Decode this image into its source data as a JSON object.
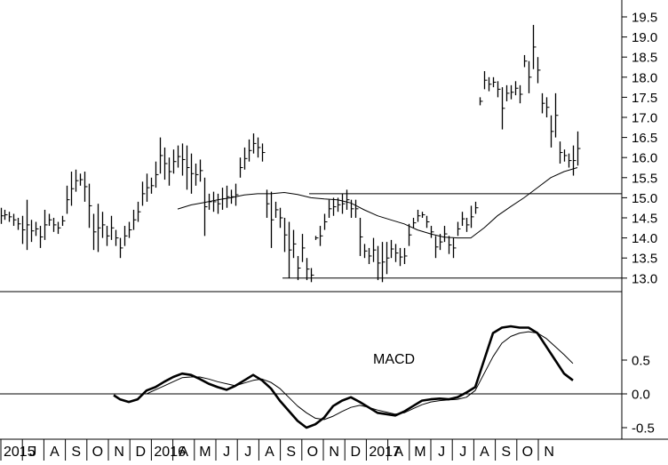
{
  "chart_data": [
    {
      "type": "bar",
      "subtype": "ohlc-price-bars",
      "yaxis": {
        "ylim": [
          12.5,
          19.8
        ],
        "ticks": [
          "19.5",
          "19.0",
          "18.5",
          "18.0",
          "17.5",
          "17.0",
          "16.5",
          "16.0",
          "15.5",
          "15.0",
          "14.5",
          "14.0",
          "13.5",
          "13.0"
        ],
        "position": "right"
      },
      "grid": false,
      "bars": [
        [
          1,
          14.35,
          14.75
        ],
        [
          5,
          14.45,
          14.7
        ],
        [
          10,
          14.4,
          14.65
        ],
        [
          15,
          14.3,
          14.6
        ],
        [
          20,
          14.2,
          14.5
        ],
        [
          25,
          13.85,
          14.55
        ],
        [
          30,
          13.7,
          14.95
        ],
        [
          35,
          13.9,
          14.45
        ],
        [
          40,
          14.05,
          14.4
        ],
        [
          45,
          13.75,
          14.3
        ],
        [
          50,
          13.95,
          14.7
        ],
        [
          55,
          14.3,
          14.6
        ],
        [
          60,
          14.15,
          14.5
        ],
        [
          65,
          14.1,
          14.4
        ],
        [
          70,
          14.3,
          14.55
        ],
        [
          75,
          14.6,
          15.3
        ],
        [
          80,
          14.8,
          15.65
        ],
        [
          85,
          15.15,
          15.7
        ],
        [
          90,
          15.3,
          15.6
        ],
        [
          95,
          14.9,
          15.65
        ],
        [
          100,
          14.25,
          15.35
        ],
        [
          105,
          13.7,
          14.6
        ],
        [
          110,
          13.65,
          14.85
        ],
        [
          115,
          14.0,
          14.65
        ],
        [
          120,
          13.8,
          14.3
        ],
        [
          125,
          13.95,
          14.55
        ],
        [
          130,
          13.8,
          14.2
        ],
        [
          135,
          13.5,
          14.0
        ],
        [
          140,
          13.8,
          14.3
        ],
        [
          145,
          14.0,
          14.4
        ],
        [
          150,
          14.2,
          14.7
        ],
        [
          155,
          14.4,
          14.9
        ],
        [
          160,
          14.8,
          15.4
        ],
        [
          165,
          14.9,
          15.6
        ],
        [
          170,
          15.1,
          15.5
        ],
        [
          175,
          15.25,
          15.9
        ],
        [
          180,
          15.6,
          16.5
        ],
        [
          185,
          15.45,
          16.25
        ],
        [
          190,
          15.3,
          16.0
        ],
        [
          195,
          15.6,
          16.2
        ],
        [
          200,
          15.75,
          16.3
        ],
        [
          205,
          15.55,
          16.35
        ],
        [
          210,
          15.2,
          16.3
        ],
        [
          215,
          15.1,
          16.1
        ],
        [
          220,
          15.3,
          15.85
        ],
        [
          225,
          15.4,
          15.95
        ],
        [
          230,
          14.05,
          15.5
        ],
        [
          235,
          14.7,
          15.1
        ],
        [
          240,
          14.65,
          15.15
        ],
        [
          245,
          14.6,
          15.1
        ],
        [
          250,
          14.7,
          15.25
        ],
        [
          255,
          14.75,
          15.3
        ],
        [
          260,
          14.85,
          15.2
        ],
        [
          265,
          14.8,
          15.35
        ],
        [
          270,
          15.5,
          16.0
        ],
        [
          275,
          15.7,
          16.25
        ],
        [
          280,
          15.9,
          16.45
        ],
        [
          285,
          16.1,
          16.6
        ],
        [
          290,
          16.0,
          16.5
        ],
        [
          295,
          15.9,
          16.35
        ],
        [
          300,
          14.5,
          15.2
        ],
        [
          305,
          13.75,
          15.15
        ],
        [
          310,
          14.5,
          14.9
        ],
        [
          315,
          14.25,
          14.75
        ],
        [
          320,
          13.65,
          14.5
        ],
        [
          325,
          13.0,
          14.4
        ],
        [
          330,
          13.5,
          14.2
        ],
        [
          335,
          12.95,
          13.55
        ],
        [
          340,
          13.4,
          14.1
        ],
        [
          345,
          12.95,
          13.5
        ],
        [
          350,
          12.9,
          13.25
        ],
        [
          355,
          13.95,
          14.05
        ],
        [
          360,
          13.8,
          14.3
        ],
        [
          365,
          14.2,
          14.6
        ],
        [
          370,
          14.5,
          14.95
        ],
        [
          375,
          14.55,
          15.0
        ],
        [
          380,
          14.65,
          15.0
        ],
        [
          385,
          14.6,
          15.1
        ],
        [
          390,
          14.7,
          15.2
        ],
        [
          395,
          14.5,
          14.95
        ],
        [
          400,
          14.5,
          14.95
        ],
        [
          405,
          13.55,
          14.5
        ],
        [
          410,
          13.5,
          13.85
        ],
        [
          415,
          13.35,
          13.75
        ],
        [
          420,
          13.4,
          14.0
        ],
        [
          425,
          12.95,
          13.8
        ],
        [
          430,
          12.9,
          13.9
        ],
        [
          435,
          13.1,
          13.9
        ],
        [
          440,
          13.5,
          13.95
        ],
        [
          445,
          13.4,
          13.85
        ],
        [
          450,
          13.3,
          13.75
        ],
        [
          455,
          13.35,
          13.75
        ],
        [
          460,
          13.8,
          14.35
        ],
        [
          465,
          14.25,
          14.5
        ],
        [
          470,
          14.4,
          14.7
        ],
        [
          475,
          14.5,
          14.65
        ],
        [
          480,
          14.25,
          14.55
        ],
        [
          485,
          14.0,
          14.3
        ],
        [
          490,
          13.5,
          14.05
        ],
        [
          495,
          13.7,
          14.1
        ],
        [
          500,
          13.9,
          14.3
        ],
        [
          505,
          13.6,
          14.05
        ],
        [
          510,
          13.5,
          14.0
        ],
        [
          515,
          14.05,
          14.4
        ],
        [
          520,
          14.3,
          14.65
        ],
        [
          525,
          14.15,
          14.5
        ],
        [
          530,
          14.25,
          14.8
        ],
        [
          535,
          14.6,
          14.9
        ],
        [
          540,
          17.3,
          17.5
        ],
        [
          545,
          17.7,
          18.15
        ],
        [
          550,
          17.65,
          18.0
        ],
        [
          555,
          17.75,
          18.0
        ],
        [
          560,
          17.5,
          17.9
        ],
        [
          565,
          16.7,
          17.75
        ],
        [
          570,
          17.4,
          17.8
        ],
        [
          575,
          17.45,
          17.8
        ],
        [
          580,
          17.55,
          17.9
        ],
        [
          585,
          17.35,
          17.8
        ],
        [
          590,
          18.25,
          18.55
        ],
        [
          595,
          17.6,
          18.4
        ],
        [
          600,
          18.2,
          19.3
        ],
        [
          605,
          17.85,
          18.5
        ],
        [
          610,
          17.1,
          17.6
        ],
        [
          615,
          17.0,
          17.5
        ],
        [
          620,
          16.25,
          17.05
        ],
        [
          625,
          16.5,
          17.6
        ],
        [
          630,
          15.85,
          16.4
        ],
        [
          635,
          15.9,
          16.2
        ],
        [
          640,
          15.75,
          16.1
        ],
        [
          645,
          15.55,
          16.3
        ],
        [
          650,
          15.8,
          16.65
        ]
      ],
      "moving_average": [
        [
          200,
          14.72
        ],
        [
          215,
          14.82
        ],
        [
          230,
          14.88
        ],
        [
          245,
          14.95
        ],
        [
          260,
          15.0
        ],
        [
          275,
          15.07
        ],
        [
          290,
          15.1
        ],
        [
          305,
          15.1
        ],
        [
          320,
          15.13
        ],
        [
          335,
          15.08
        ],
        [
          350,
          15.0
        ],
        [
          365,
          14.97
        ],
        [
          380,
          14.95
        ],
        [
          395,
          14.87
        ],
        [
          410,
          14.7
        ],
        [
          425,
          14.55
        ],
        [
          440,
          14.45
        ],
        [
          455,
          14.35
        ],
        [
          470,
          14.2
        ],
        [
          485,
          14.1
        ],
        [
          500,
          14.02
        ],
        [
          515,
          14.0
        ],
        [
          530,
          14.0
        ],
        [
          545,
          14.25
        ],
        [
          560,
          14.55
        ],
        [
          575,
          14.78
        ],
        [
          590,
          15.0
        ],
        [
          605,
          15.25
        ],
        [
          620,
          15.5
        ],
        [
          635,
          15.65
        ],
        [
          650,
          15.75
        ]
      ],
      "horizontal_lines": [
        [
          318,
          700,
          13.0
        ],
        [
          348,
          700,
          15.1
        ]
      ]
    },
    {
      "type": "line",
      "title": "MACD",
      "yaxis": {
        "ylim": [
          -0.65,
          1.3
        ],
        "ticks": [
          "0.5",
          "0.0",
          "-0.5"
        ],
        "position": "right"
      },
      "zero_line": 0.0,
      "series": [
        {
          "values": [
            [
              128,
              -0.02
            ],
            [
              135,
              -0.08
            ],
            [
              145,
              -0.12
            ],
            [
              155,
              -0.08
            ],
            [
              165,
              0.05
            ],
            [
              175,
              0.1
            ],
            [
              185,
              0.18
            ],
            [
              195,
              0.25
            ],
            [
              205,
              0.3
            ],
            [
              215,
              0.28
            ],
            [
              225,
              0.22
            ],
            [
              235,
              0.15
            ],
            [
              245,
              0.1
            ],
            [
              255,
              0.06
            ],
            [
              265,
              0.12
            ],
            [
              275,
              0.2
            ],
            [
              285,
              0.28
            ],
            [
              295,
              0.2
            ],
            [
              305,
              0.08
            ],
            [
              315,
              -0.1
            ],
            [
              325,
              -0.25
            ],
            [
              335,
              -0.4
            ],
            [
              345,
              -0.5
            ],
            [
              355,
              -0.45
            ],
            [
              365,
              -0.35
            ],
            [
              375,
              -0.18
            ],
            [
              385,
              -0.1
            ],
            [
              395,
              -0.05
            ],
            [
              405,
              -0.12
            ],
            [
              415,
              -0.2
            ],
            [
              425,
              -0.28
            ],
            [
              435,
              -0.3
            ],
            [
              445,
              -0.32
            ],
            [
              455,
              -0.26
            ],
            [
              465,
              -0.18
            ],
            [
              475,
              -0.1
            ],
            [
              485,
              -0.08
            ],
            [
              495,
              -0.07
            ],
            [
              505,
              -0.08
            ],
            [
              515,
              -0.05
            ],
            [
              525,
              0.02
            ],
            [
              535,
              0.1
            ],
            [
              545,
              0.5
            ],
            [
              555,
              0.9
            ],
            [
              565,
              0.98
            ],
            [
              575,
              1.0
            ],
            [
              585,
              0.98
            ],
            [
              595,
              0.98
            ],
            [
              605,
              0.9
            ],
            [
              615,
              0.7
            ],
            [
              625,
              0.5
            ],
            [
              635,
              0.3
            ],
            [
              645,
              0.2
            ]
          ]
        },
        {
          "values": [
            [
              165,
              0.0
            ],
            [
              175,
              0.06
            ],
            [
              185,
              0.12
            ],
            [
              195,
              0.18
            ],
            [
              205,
              0.24
            ],
            [
              215,
              0.25
            ],
            [
              225,
              0.25
            ],
            [
              235,
              0.22
            ],
            [
              245,
              0.18
            ],
            [
              255,
              0.15
            ],
            [
              265,
              0.12
            ],
            [
              275,
              0.16
            ],
            [
              285,
              0.2
            ],
            [
              295,
              0.22
            ],
            [
              305,
              0.17
            ],
            [
              315,
              0.08
            ],
            [
              325,
              -0.05
            ],
            [
              335,
              -0.18
            ],
            [
              345,
              -0.28
            ],
            [
              355,
              -0.36
            ],
            [
              365,
              -0.38
            ],
            [
              375,
              -0.33
            ],
            [
              385,
              -0.26
            ],
            [
              395,
              -0.2
            ],
            [
              405,
              -0.17
            ],
            [
              415,
              -0.2
            ],
            [
              425,
              -0.24
            ],
            [
              435,
              -0.27
            ],
            [
              445,
              -0.3
            ],
            [
              455,
              -0.28
            ],
            [
              465,
              -0.22
            ],
            [
              475,
              -0.16
            ],
            [
              485,
              -0.12
            ],
            [
              495,
              -0.1
            ],
            [
              505,
              -0.09
            ],
            [
              515,
              -0.08
            ],
            [
              525,
              -0.05
            ],
            [
              535,
              0.05
            ],
            [
              545,
              0.3
            ],
            [
              555,
              0.55
            ],
            [
              565,
              0.75
            ],
            [
              575,
              0.85
            ],
            [
              585,
              0.9
            ],
            [
              595,
              0.92
            ],
            [
              605,
              0.9
            ],
            [
              615,
              0.82
            ],
            [
              625,
              0.7
            ],
            [
              635,
              0.58
            ],
            [
              645,
              0.45
            ]
          ]
        }
      ]
    }
  ],
  "xaxis_labels": [
    "2015",
    "J",
    "A",
    "S",
    "O",
    "N",
    "D",
    "2016",
    "A",
    "M",
    "J",
    "J",
    "A",
    "S",
    "O",
    "N",
    "D",
    "2017",
    "A",
    "M",
    "J",
    "J",
    "A",
    "S",
    "O",
    "N"
  ],
  "colors": {
    "line": "#000000",
    "background": "#ffffff"
  }
}
